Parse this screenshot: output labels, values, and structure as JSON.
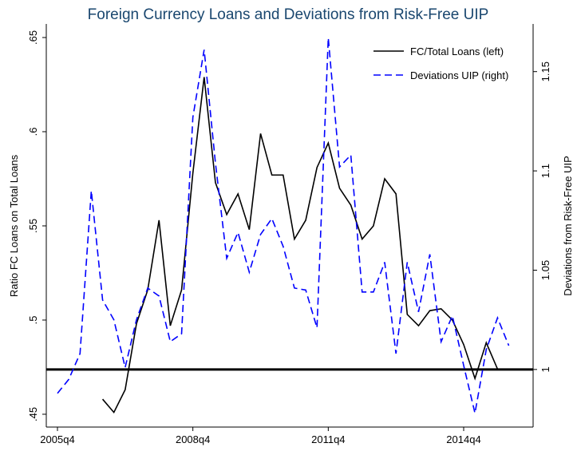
{
  "chart_data": {
    "type": "line",
    "title": "Foreign Currency Loans and Deviations from Risk-Free UIP",
    "y_label": "Ratio FC Loans on Total Loans",
    "y2_label": "Deviations from Risk-Free UIP",
    "categories": [
      "2005q4",
      null,
      null,
      null,
      null,
      null,
      null,
      null,
      null,
      null,
      null,
      null,
      "2008q4",
      null,
      null,
      null,
      null,
      null,
      null,
      null,
      null,
      null,
      null,
      null,
      "2011q4",
      null,
      null,
      null,
      null,
      null,
      null,
      null,
      null,
      null,
      null,
      null,
      "2014q4",
      null,
      null,
      null,
      null
    ],
    "series": [
      {
        "name": "FC/Total Loans (left)",
        "color": "#000000",
        "dash": false,
        "values": [
          null,
          null,
          null,
          null,
          0.458,
          0.451,
          0.463,
          0.498,
          0.516,
          0.553,
          0.497,
          0.516,
          0.578,
          0.629,
          0.573,
          0.556,
          0.567,
          0.548,
          0.599,
          0.577,
          0.577,
          0.543,
          0.553,
          0.581,
          0.594,
          0.57,
          0.561,
          0.543,
          0.55,
          0.575,
          0.567,
          0.503,
          0.497,
          0.505,
          0.506,
          0.5,
          0.487,
          0.469,
          0.488,
          0.474,
          null
        ]
      },
      {
        "name": "Deviations UIP (right)",
        "color": "#0000ff",
        "dash": true,
        "axis": "y2",
        "values": [
          0.988,
          0.995,
          1.008,
          1.09,
          1.035,
          1.025,
          1.001,
          1.025,
          1.041,
          1.037,
          1.014,
          1.018,
          1.127,
          1.161,
          1.104,
          1.056,
          1.069,
          1.049,
          1.068,
          1.076,
          1.062,
          1.041,
          1.04,
          1.021,
          1.167,
          1.102,
          1.108,
          1.039,
          1.039,
          1.054,
          1.008,
          1.054,
          1.029,
          1.058,
          1.014,
          1.027,
          1.002,
          0.978,
          1.01,
          1.026,
          1.012
        ]
      }
    ],
    "ylim": [
      0.4432,
      0.6572
    ],
    "yticks": [
      {
        "value": 0.45,
        "label": ".45"
      },
      {
        "value": 0.5,
        "label": ".5"
      },
      {
        "value": 0.55,
        "label": ".55"
      },
      {
        "value": 0.6,
        "label": ".6"
      },
      {
        "value": 0.65,
        "label": ".65"
      }
    ],
    "y2lim": [
      0.971,
      1.174
    ],
    "y2ticks": [
      1,
      1.05,
      1.1,
      1.15
    ],
    "reference_line": {
      "value": 1,
      "axis": "y2"
    },
    "legend": "top-right"
  }
}
